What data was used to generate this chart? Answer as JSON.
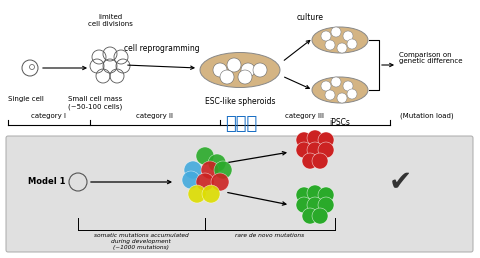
{
  "title": "普洱茶",
  "title_color": "#1a6fc4",
  "title_fontsize": 13,
  "bg_color": "#ffffff",
  "bottom_panel_color": "#e0e0e0",
  "cat1_label": "category I",
  "cat2_label": "category II",
  "cat3_label": "category III",
  "mut_load_label": "(Mutation load)",
  "model1_label": "Model 1",
  "somatic_label": "somatic mutations accumulated\nduring development\n(~1000 mutations)",
  "denovo_label": "rare de novo mutations",
  "limited_cell": "limited\ncell divisions",
  "cell_reprog": "cell reprogramming",
  "culture": "culture",
  "esc": "ESC-like spheroids",
  "ipscs": "iPSCs",
  "comparison": "Comparison on\ngenetic difference",
  "single_cell": "Single cell",
  "small_cell": "Small cell mass\n(~50-100 cells)"
}
